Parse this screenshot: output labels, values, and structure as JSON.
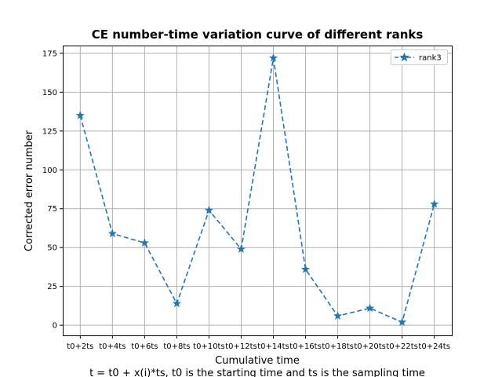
{
  "chart_data": {
    "type": "line",
    "title": "CE number-time variation curve of different ranks",
    "xlabel": "Cumulative time",
    "ylabel": "Corrected error number",
    "caption": "t = t0 + x(i)*ts, t0 is the starting time and ts is the sampling time",
    "categories": [
      "t0+2ts",
      "t0+4ts",
      "t0+6ts",
      "t0+8ts",
      "t0+10ts",
      "t0+12ts",
      "t0+14ts",
      "t0+16ts",
      "t0+18ts",
      "t0+20ts",
      "t0+22ts",
      "t0+24ts"
    ],
    "yticks": [
      0,
      25,
      50,
      75,
      100,
      125,
      150,
      175
    ],
    "ylim": [
      -6.5,
      180
    ],
    "grid": true,
    "legend_position": "top-right",
    "series": [
      {
        "name": "rank3",
        "color": "#1f77b4",
        "line_style": "dashed",
        "marker": "star",
        "values": [
          135,
          59,
          53,
          14,
          74,
          49,
          172,
          36,
          6,
          11,
          2,
          78
        ]
      }
    ]
  }
}
